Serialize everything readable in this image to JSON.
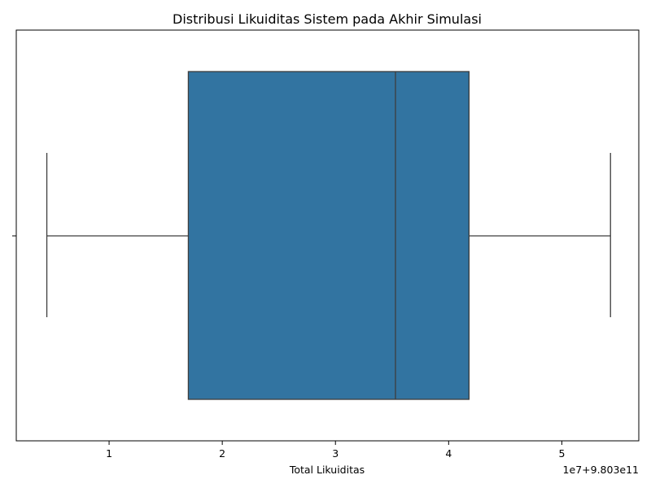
{
  "chart_data": {
    "type": "box",
    "title": "Distribusi Likuiditas Sistem pada Akhir Simulasi",
    "xlabel": "Total Likuiditas",
    "ylabel": "",
    "offset_label": "1e7+9.803e11",
    "xlim": [
      0.18,
      5.68
    ],
    "xticks": [
      1,
      2,
      3,
      4,
      5
    ],
    "xtick_labels": [
      "1",
      "2",
      "3",
      "4",
      "5"
    ],
    "grid": false,
    "box": {
      "whisker_low": 0.45,
      "q1": 1.7,
      "median": 3.53,
      "q3": 4.18,
      "whisker_high": 5.43
    },
    "colors": {
      "box_fill": "#3274a1",
      "line": "#3d3d3d"
    }
  }
}
